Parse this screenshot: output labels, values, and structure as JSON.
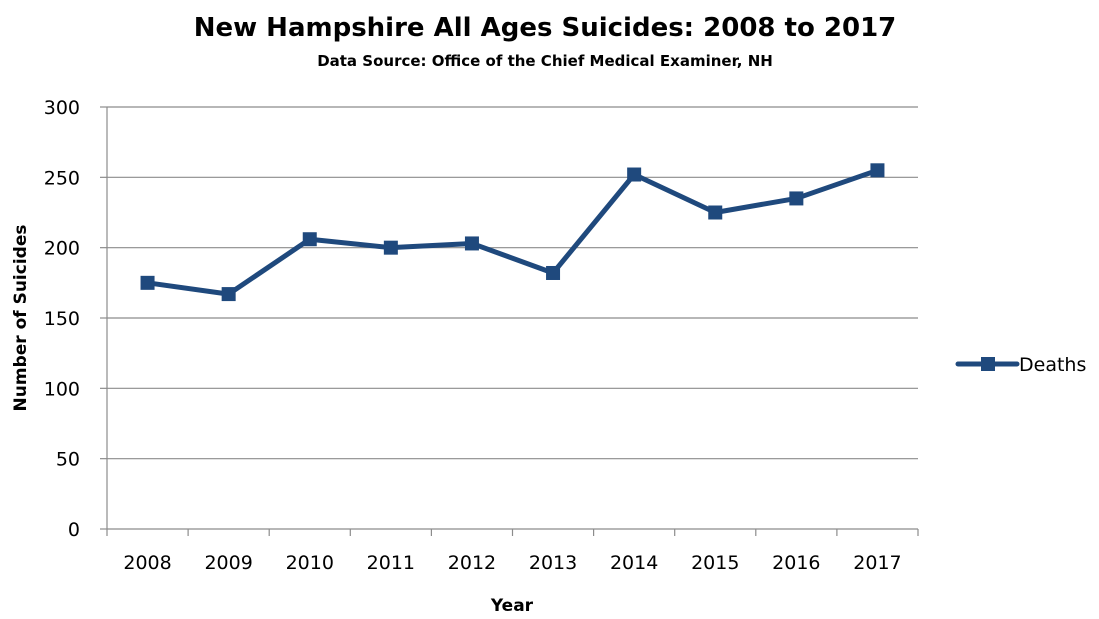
{
  "chart_data": {
    "type": "line",
    "title": "New Hampshire All Ages Suicides: 2008 to 2017",
    "subtitle": "Data Source: Office of the Chief Medical Examiner, NH",
    "xlabel": "Year",
    "ylabel": "Number of Suicides",
    "categories": [
      "2008",
      "2009",
      "2010",
      "2011",
      "2012",
      "2013",
      "2014",
      "2015",
      "2016",
      "2017"
    ],
    "series": [
      {
        "name": "Deaths",
        "values": [
          175,
          167,
          206,
          200,
          203,
          182,
          252,
          225,
          235,
          255
        ],
        "color": "#1f497d"
      }
    ],
    "ylim": [
      0,
      300
    ],
    "yticks": [
      "0",
      "50",
      "100",
      "150",
      "200",
      "250",
      "300"
    ],
    "grid": true,
    "legend_position": "right"
  }
}
